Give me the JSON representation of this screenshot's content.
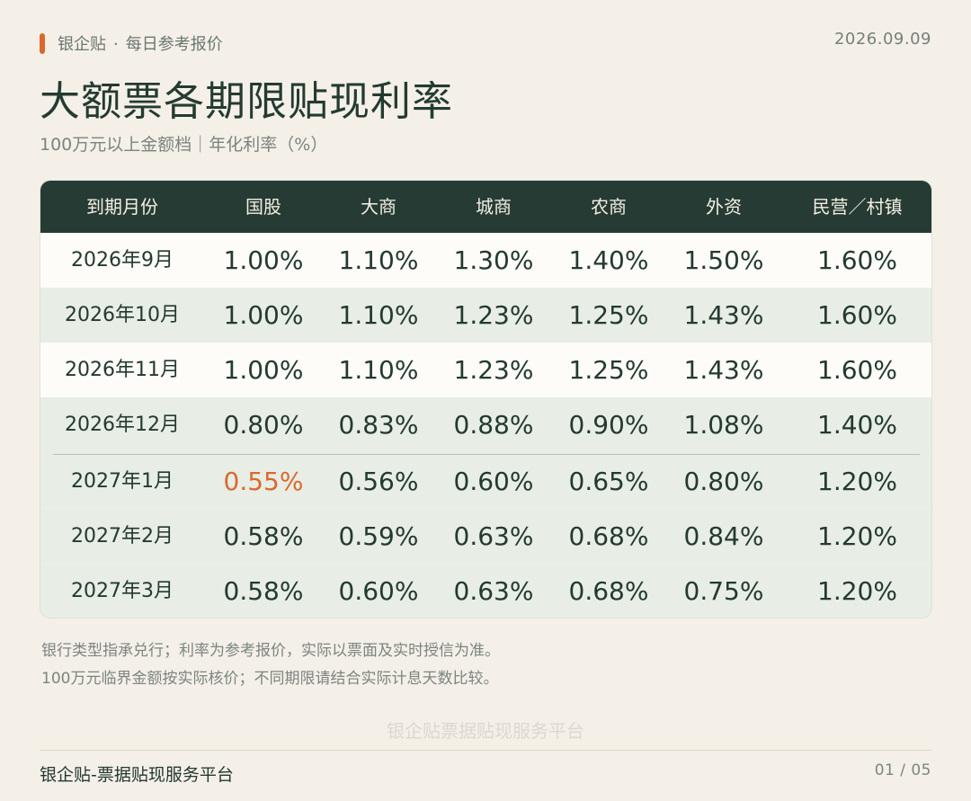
{
  "header": {
    "brand": "银企贴",
    "separator": "·",
    "section": "每日参考报价",
    "date": "2026.09.09"
  },
  "title": "大额票各期限贴现利率",
  "subtitle": "100万元以上金额档｜年化利率（%）",
  "table": {
    "columns": [
      "到期月份",
      "国股",
      "大商",
      "城商",
      "农商",
      "外资",
      "民营／村镇"
    ],
    "rows": [
      {
        "period": "2026年9月",
        "values": [
          "1.00%",
          "1.10%",
          "1.30%",
          "1.40%",
          "1.50%",
          "1.60%"
        ]
      },
      {
        "period": "2026年10月",
        "values": [
          "1.00%",
          "1.10%",
          "1.23%",
          "1.25%",
          "1.43%",
          "1.60%"
        ]
      },
      {
        "period": "2026年11月",
        "values": [
          "1.00%",
          "1.10%",
          "1.23%",
          "1.25%",
          "1.43%",
          "1.60%"
        ]
      },
      {
        "period": "2026年12月",
        "values": [
          "0.80%",
          "0.83%",
          "0.88%",
          "0.90%",
          "1.08%",
          "1.40%"
        ]
      },
      {
        "period": "2027年1月",
        "values": [
          "0.55%",
          "0.56%",
          "0.60%",
          "0.65%",
          "0.80%",
          "1.20%"
        ]
      },
      {
        "period": "2027年2月",
        "values": [
          "0.58%",
          "0.59%",
          "0.63%",
          "0.68%",
          "0.84%",
          "1.20%"
        ]
      },
      {
        "period": "2027年3月",
        "values": [
          "0.58%",
          "0.60%",
          "0.63%",
          "0.68%",
          "0.75%",
          "1.20%"
        ]
      }
    ],
    "highlight_cell": "0.55%",
    "highlight_color": "#d9692f"
  },
  "notes": [
    "银行类型指承兑行；利率为参考报价，实际以票面及实时授信为准。",
    "100万元临界金额按实际核价；不同期限请结合实际计息天数比较。"
  ],
  "watermark": "银企贴票据贴现服务平台",
  "footer": {
    "platform": "银企贴-票据贴现服务平台",
    "page": "01 / 05"
  },
  "colors": {
    "accent": "#d9692f",
    "header_bg": "#263b33",
    "page_bg": "#f4f0e8",
    "text": "#24382f"
  }
}
